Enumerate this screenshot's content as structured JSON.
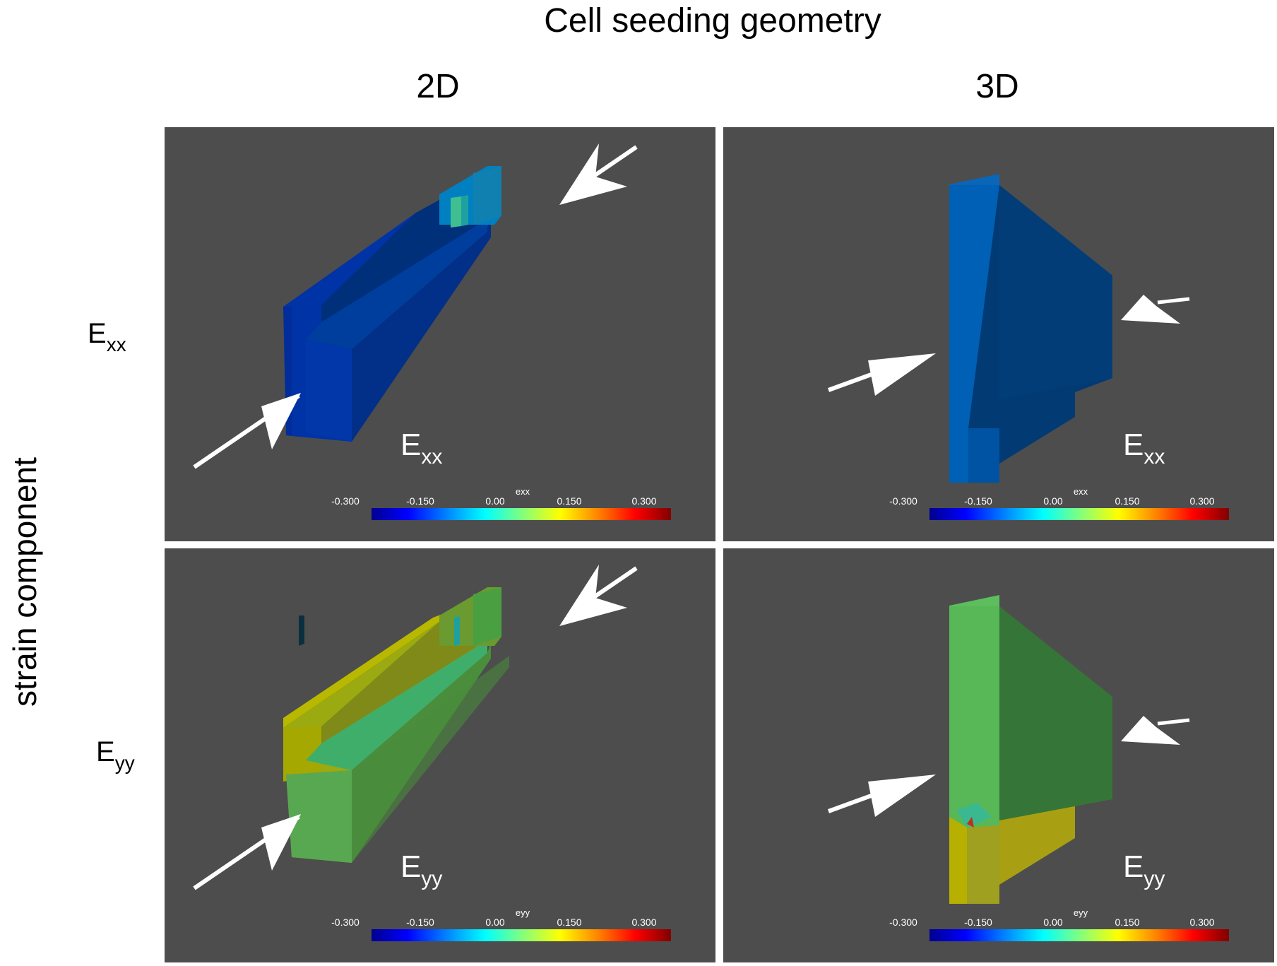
{
  "title": "Cell seeding geometry",
  "columns": [
    "2D",
    "3D"
  ],
  "rows": [
    {
      "base": "E",
      "sub": "xx"
    },
    {
      "base": "E",
      "sub": "yy"
    }
  ],
  "side_label": "strain component",
  "panels": [
    {
      "label_base": "E",
      "label_sub": "xx",
      "cbar_name": "exx"
    },
    {
      "label_base": "E",
      "label_sub": "xx",
      "cbar_name": "exx"
    },
    {
      "label_base": "E",
      "label_sub": "yy",
      "cbar_name": "eyy"
    },
    {
      "label_base": "E",
      "label_sub": "yy",
      "cbar_name": "eyy"
    }
  ],
  "colorbar_ticks": [
    "-0.300",
    "-0.150",
    "0.00",
    "0.150",
    "0.300"
  ],
  "colors": {
    "background": "#4d4d4d",
    "arrow": "#ffffff"
  }
}
